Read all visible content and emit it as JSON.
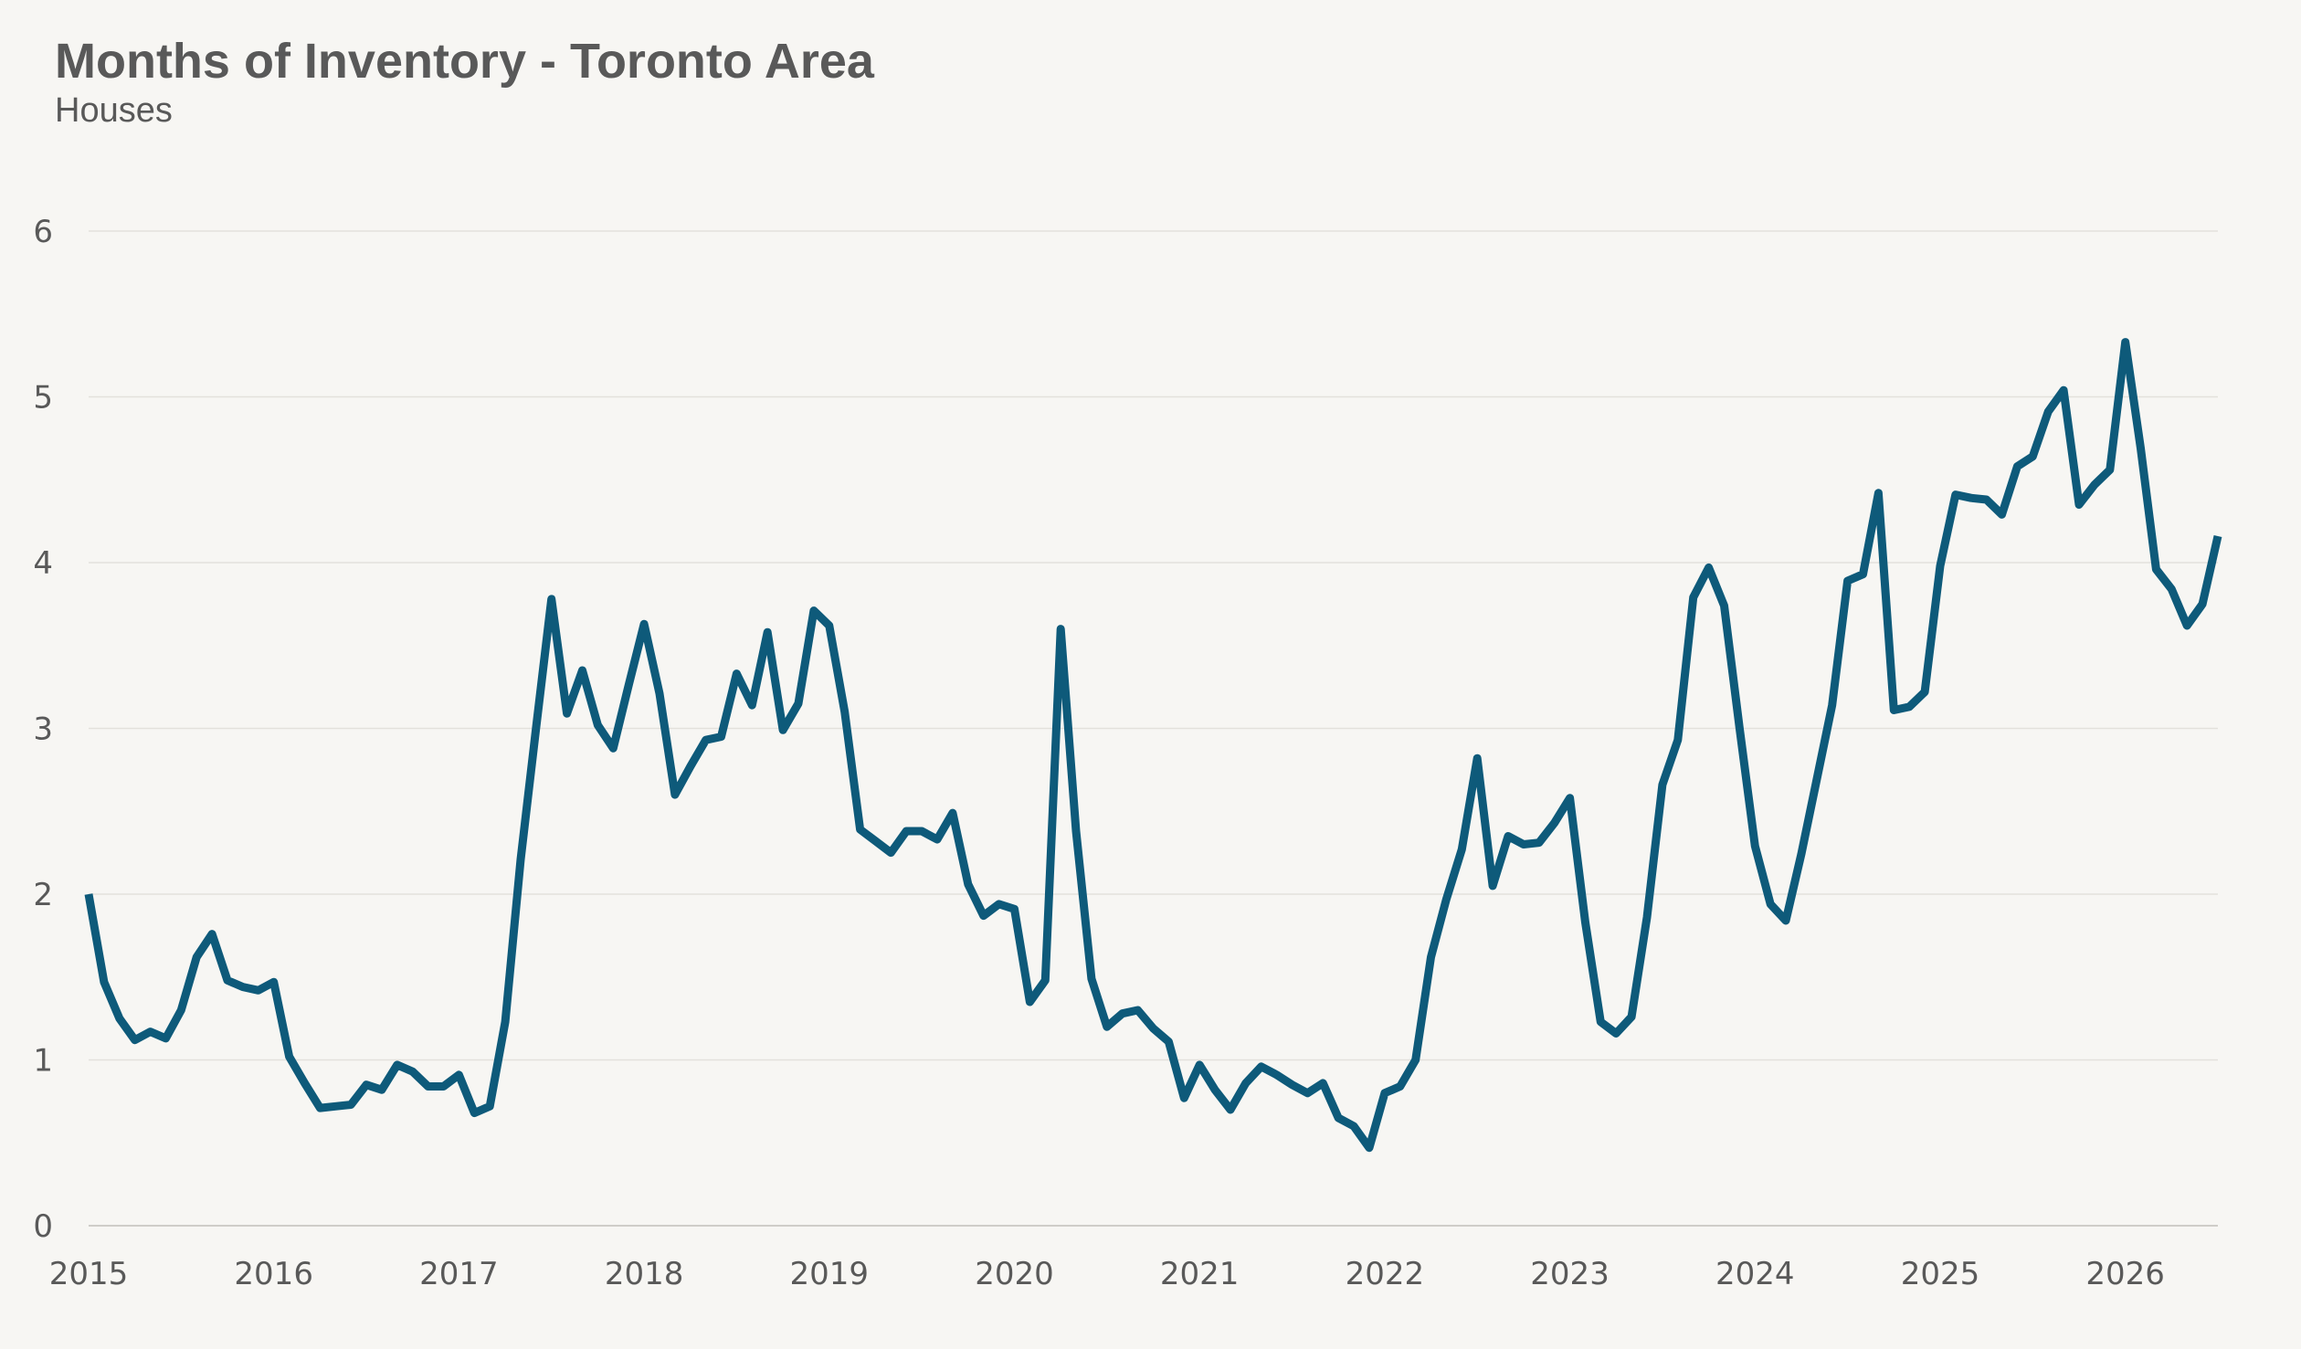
{
  "colors": {
    "background": "#f7f6f3",
    "line": "#0e5a7a",
    "grid": "#e3e1dc",
    "axis": "#cfcdc8",
    "text": "#595959"
  },
  "chart_data": {
    "type": "line",
    "title": "Months of Inventory - Toronto Area",
    "subtitle": "Houses",
    "xlabel": "",
    "ylabel": "",
    "ylim": [
      0,
      6
    ],
    "xlim": [
      "2015-01",
      "2026-07"
    ],
    "yticks": [
      "0",
      "1",
      "2",
      "3",
      "4",
      "5",
      "6"
    ],
    "xticks": [
      {
        "label": "2015",
        "date": "2015-01"
      },
      {
        "label": "2016",
        "date": "2016-01"
      },
      {
        "label": "2017",
        "date": "2017-01"
      },
      {
        "label": "2018",
        "date": "2018-01"
      },
      {
        "label": "2019",
        "date": "2019-01"
      },
      {
        "label": "2020",
        "date": "2020-01"
      },
      {
        "label": "2021",
        "date": "2021-01"
      },
      {
        "label": "2022",
        "date": "2022-01"
      },
      {
        "label": "2023",
        "date": "2023-01"
      },
      {
        "label": "2024",
        "date": "2024-01"
      },
      {
        "label": "2025",
        "date": "2025-01"
      },
      {
        "label": "2026",
        "date": "2026-01"
      }
    ],
    "grid": true,
    "legend": "none",
    "series": [
      {
        "x": [
          "2015-01",
          "2015-02",
          "2015-03",
          "2015-04",
          "2015-05",
          "2015-06",
          "2015-07",
          "2015-08",
          "2015-09",
          "2015-10",
          "2015-11",
          "2015-12",
          "2016-01",
          "2016-02",
          "2016-03",
          "2016-04",
          "2016-05",
          "2016-06",
          "2016-07",
          "2016-08",
          "2016-09",
          "2016-10",
          "2016-11",
          "2016-12",
          "2017-01",
          "2017-02",
          "2017-03",
          "2017-04",
          "2017-05",
          "2017-06",
          "2017-07",
          "2017-08",
          "2017-09",
          "2017-10",
          "2017-11",
          "2017-12",
          "2018-01",
          "2018-02",
          "2018-03",
          "2018-04",
          "2018-05",
          "2018-06",
          "2018-07",
          "2018-08",
          "2018-09",
          "2018-10",
          "2018-11",
          "2018-12",
          "2019-01",
          "2019-02",
          "2019-03",
          "2019-04",
          "2019-05",
          "2019-06",
          "2019-07",
          "2019-08",
          "2019-09",
          "2019-10",
          "2019-11",
          "2019-12",
          "2020-01",
          "2020-02",
          "2020-03",
          "2020-04",
          "2020-05",
          "2020-06",
          "2020-07",
          "2020-08",
          "2020-09",
          "2020-10",
          "2020-11",
          "2020-12",
          "2021-01",
          "2021-02",
          "2021-03",
          "2021-04",
          "2021-05",
          "2021-06",
          "2021-07",
          "2021-08",
          "2021-09",
          "2021-10",
          "2021-11",
          "2021-12",
          "2022-01",
          "2022-02",
          "2022-03",
          "2022-04",
          "2022-05",
          "2022-06",
          "2022-07",
          "2022-08",
          "2022-09",
          "2022-10",
          "2022-11",
          "2022-12",
          "2023-01",
          "2023-02",
          "2023-03",
          "2023-04",
          "2023-05",
          "2023-06",
          "2023-07",
          "2023-08",
          "2023-09",
          "2023-10",
          "2023-11",
          "2023-12",
          "2024-01",
          "2024-02",
          "2024-03",
          "2024-04",
          "2024-05",
          "2024-06",
          "2024-07",
          "2024-08",
          "2024-09",
          "2024-10",
          "2024-11",
          "2024-12",
          "2025-01",
          "2025-02",
          "2025-03",
          "2025-04",
          "2025-05",
          "2025-06",
          "2025-07",
          "2025-08",
          "2025-09",
          "2025-10",
          "2025-11",
          "2025-12",
          "2026-01",
          "2026-02",
          "2026-03",
          "2026-04",
          "2026-05",
          "2026-06",
          "2026-07"
        ],
        "y": [
          2.0,
          1.47,
          1.25,
          1.12,
          1.17,
          1.13,
          1.3,
          1.62,
          1.76,
          1.48,
          1.44,
          1.42,
          1.47,
          1.02,
          0.86,
          0.71,
          0.72,
          0.73,
          0.85,
          0.82,
          0.97,
          0.93,
          0.84,
          0.84,
          0.91,
          0.68,
          0.72,
          1.23,
          2.21,
          3.0,
          3.78,
          3.09,
          3.35,
          3.02,
          2.88,
          3.26,
          3.63,
          3.21,
          2.6,
          2.77,
          2.93,
          2.95,
          3.33,
          3.14,
          3.58,
          2.99,
          3.15,
          3.71,
          3.62,
          3.1,
          2.39,
          2.32,
          2.25,
          2.38,
          2.38,
          2.33,
          2.49,
          2.06,
          1.87,
          1.94,
          1.91,
          1.35,
          1.48,
          3.6,
          2.38,
          1.49,
          1.2,
          1.28,
          1.3,
          1.19,
          1.11,
          0.77,
          0.97,
          0.82,
          0.7,
          0.86,
          0.96,
          0.91,
          0.85,
          0.8,
          0.86,
          0.65,
          0.6,
          0.47,
          0.8,
          0.84,
          1.0,
          1.62,
          1.97,
          2.27,
          2.82,
          2.05,
          2.35,
          2.3,
          2.31,
          2.43,
          2.58,
          1.83,
          1.23,
          1.16,
          1.26,
          1.86,
          2.66,
          2.93,
          3.79,
          3.97,
          3.74,
          3.0,
          2.29,
          1.94,
          1.84,
          2.24,
          2.69,
          3.14,
          3.89,
          3.93,
          4.42,
          3.11,
          3.13,
          3.22,
          3.98,
          4.41,
          4.39,
          4.38,
          4.29,
          4.58,
          4.64,
          4.91,
          5.04,
          4.35,
          4.47,
          4.56,
          5.33,
          4.69,
          3.96,
          3.84,
          3.62,
          3.75,
          4.16
        ]
      }
    ]
  }
}
